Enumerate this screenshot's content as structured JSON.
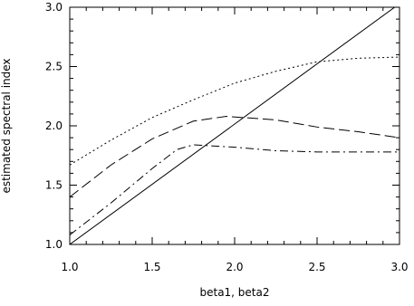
{
  "chart_data": {
    "type": "line",
    "title": "",
    "xlabel": "beta1, beta2",
    "ylabel": "estimated spectral index",
    "xlim": [
      1.0,
      3.0
    ],
    "ylim": [
      1.0,
      3.0
    ],
    "xticks": [
      1.0,
      1.5,
      2.0,
      2.5,
      3.0
    ],
    "xtick_labels": [
      "1.0",
      "1.5",
      "2.0",
      "2.5",
      "3.0"
    ],
    "yticks": [
      1.0,
      1.5,
      2.0,
      2.5,
      3.0
    ],
    "ytick_labels": [
      "1.0",
      "1.5",
      "2.0",
      "2.5",
      "3.0"
    ],
    "grid": false,
    "legend": "none",
    "series": [
      {
        "style": "solid",
        "x": [
          1.0,
          3.0
        ],
        "y": [
          1.0,
          3.03
        ]
      },
      {
        "style": "dotted",
        "x": [
          1.0,
          1.25,
          1.5,
          1.75,
          2.0,
          2.25,
          2.5,
          2.75,
          3.0
        ],
        "y": [
          1.67,
          1.88,
          2.07,
          2.22,
          2.36,
          2.46,
          2.54,
          2.57,
          2.58
        ]
      },
      {
        "style": "dashed",
        "x": [
          1.0,
          1.25,
          1.5,
          1.75,
          1.95,
          2.25,
          2.5,
          2.75,
          3.0
        ],
        "y": [
          1.4,
          1.67,
          1.89,
          2.04,
          2.08,
          2.05,
          1.99,
          1.95,
          1.9
        ]
      },
      {
        "style": "dashdot",
        "x": [
          1.0,
          1.25,
          1.5,
          1.65,
          1.75,
          2.0,
          2.25,
          2.5,
          2.75,
          3.0
        ],
        "y": [
          1.08,
          1.35,
          1.64,
          1.8,
          1.84,
          1.82,
          1.79,
          1.78,
          1.78,
          1.78
        ]
      }
    ]
  }
}
